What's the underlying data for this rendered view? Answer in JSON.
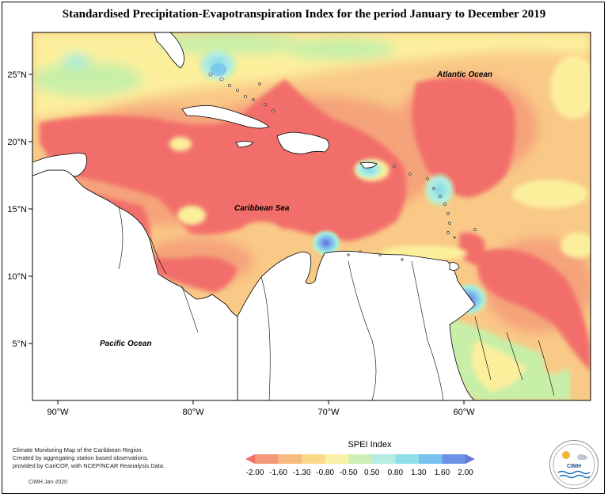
{
  "title": "Standardised Precipitation-Evapotranspiration Index for the period January to December 2019",
  "axes": {
    "lat_labels": [
      "25°N",
      "20°N",
      "15°N",
      "10°N",
      "5°N"
    ],
    "lon_labels": [
      "90°W",
      "80°W",
      "70°W",
      "60°W"
    ]
  },
  "ocean_labels": {
    "atlantic": "Atlantic Ocean",
    "caribbean": "Caribbean Sea",
    "pacific": "Pacific Ocean"
  },
  "credit": {
    "line1": "Climate Monitoring Map of the Caribbean Region.",
    "line2": "Created by aggregating station based observations,",
    "line3": "provided by CariCOF, with NCEP/NCAR Reanalysis Data.",
    "date": "CIMH  Jan-2020"
  },
  "legend": {
    "title": "SPEI Index",
    "labels": [
      "-2.00",
      "-1.60",
      "-1.30",
      "-0.80",
      "-0.50",
      "0.50",
      "0.80",
      "1.30",
      "1.60",
      "2.00"
    ],
    "colors": [
      "#f07068",
      "#f39878",
      "#f7bb80",
      "#fbd885",
      "#fbf0a8",
      "#cdf0b4",
      "#b4eee0",
      "#8fe0ea",
      "#78c2f0",
      "#6c92e8",
      "#6a78d8"
    ]
  },
  "logo": {
    "text": "CIMH"
  },
  "colors": {
    "land": "#ffffff",
    "strong_dry": "#f26e6a",
    "dry": "#f5a37a",
    "mod_dry": "#f9c987",
    "near_normal": "#fcef9c",
    "wet": "#c8efa8",
    "very_wet": "#a2eedc",
    "extreme_wet": "#6f86de"
  }
}
